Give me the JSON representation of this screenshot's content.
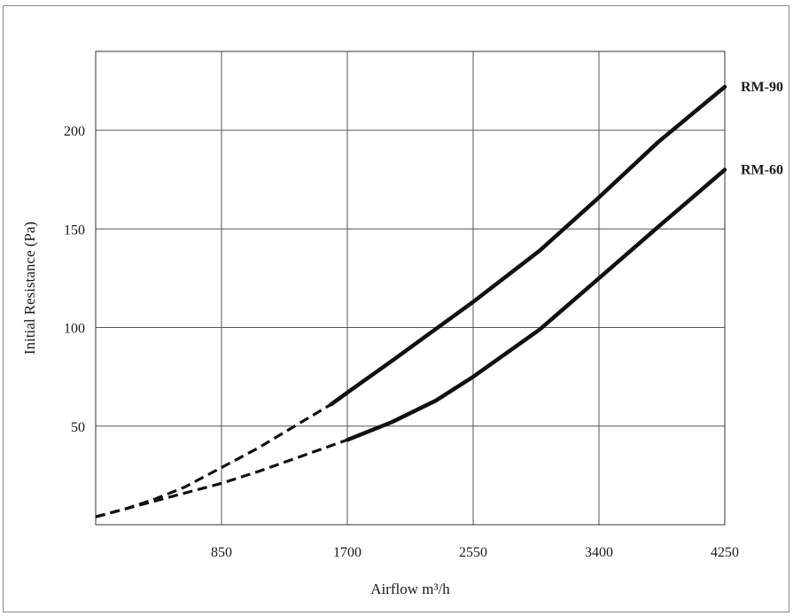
{
  "chart_data": {
    "type": "line",
    "xlabel": "Airflow m³/h",
    "ylabel": "Initial Resistance (Pa)",
    "x_ticks": [
      "850",
      "1700",
      "2550",
      "3400",
      "4250"
    ],
    "y_ticks": [
      "50",
      "100",
      "150",
      "200"
    ],
    "xlim": [
      0,
      4250
    ],
    "ylim": [
      0,
      240
    ],
    "grid": true,
    "series": [
      {
        "name": "RM-90",
        "dashed_points": [
          [
            0,
            4
          ],
          [
            200,
            8
          ],
          [
            400,
            13
          ],
          [
            600,
            19
          ],
          [
            850,
            29
          ],
          [
            1100,
            39
          ],
          [
            1300,
            48
          ],
          [
            1500,
            57
          ],
          [
            1590,
            61
          ]
        ],
        "solid_points": [
          [
            1590,
            61
          ],
          [
            1700,
            67
          ],
          [
            2000,
            83
          ],
          [
            2550,
            113
          ],
          [
            3000,
            139
          ],
          [
            3400,
            166
          ],
          [
            3800,
            194
          ],
          [
            4250,
            222
          ]
        ]
      },
      {
        "name": "RM-60",
        "dashed_points": [
          [
            0,
            4
          ],
          [
            200,
            8
          ],
          [
            400,
            12
          ],
          [
            600,
            16
          ],
          [
            850,
            21
          ],
          [
            1100,
            27
          ],
          [
            1400,
            35
          ],
          [
            1700,
            43
          ]
        ],
        "solid_points": [
          [
            1700,
            43
          ],
          [
            2000,
            52
          ],
          [
            2300,
            63
          ],
          [
            2550,
            75
          ],
          [
            3000,
            99
          ],
          [
            3400,
            125
          ],
          [
            3800,
            151
          ],
          [
            4250,
            180
          ]
        ]
      }
    ]
  }
}
